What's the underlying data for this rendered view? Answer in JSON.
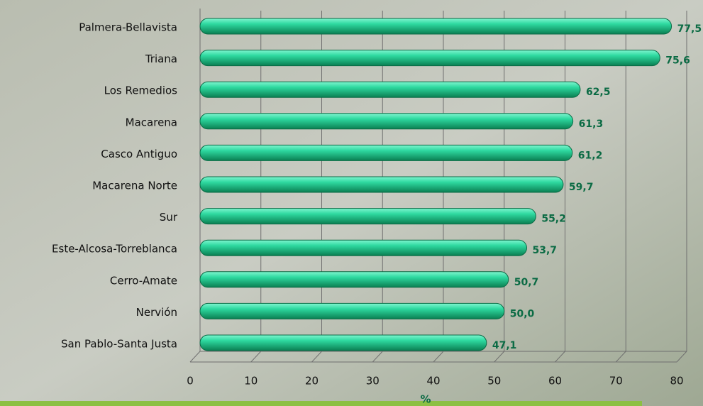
{
  "chart_data": {
    "type": "bar",
    "orientation": "horizontal",
    "categories": [
      "Palmera-Bellavista",
      "Triana",
      "Los Remedios",
      "Macarena",
      "Casco Antiguo",
      "Macarena Norte",
      "Sur",
      "Este-Alcosa-Torreblanca",
      "Cerro-Amate",
      "Nervión",
      "San Pablo-Santa Justa"
    ],
    "values": [
      77.5,
      75.6,
      62.5,
      61.3,
      61.2,
      59.7,
      55.2,
      53.7,
      50.7,
      50.0,
      47.1
    ],
    "value_labels": [
      "77,5",
      "75,6",
      "62,5",
      "61,3",
      "61,2",
      "59,7",
      "55,2",
      "53,7",
      "50,7",
      "50,0",
      "47,1"
    ],
    "color": "#1fc58a",
    "x_label": "%",
    "xlim": [
      0,
      80
    ],
    "xticks": [
      0,
      10,
      20,
      30,
      40,
      50,
      60,
      70,
      80
    ],
    "grid": true
  }
}
